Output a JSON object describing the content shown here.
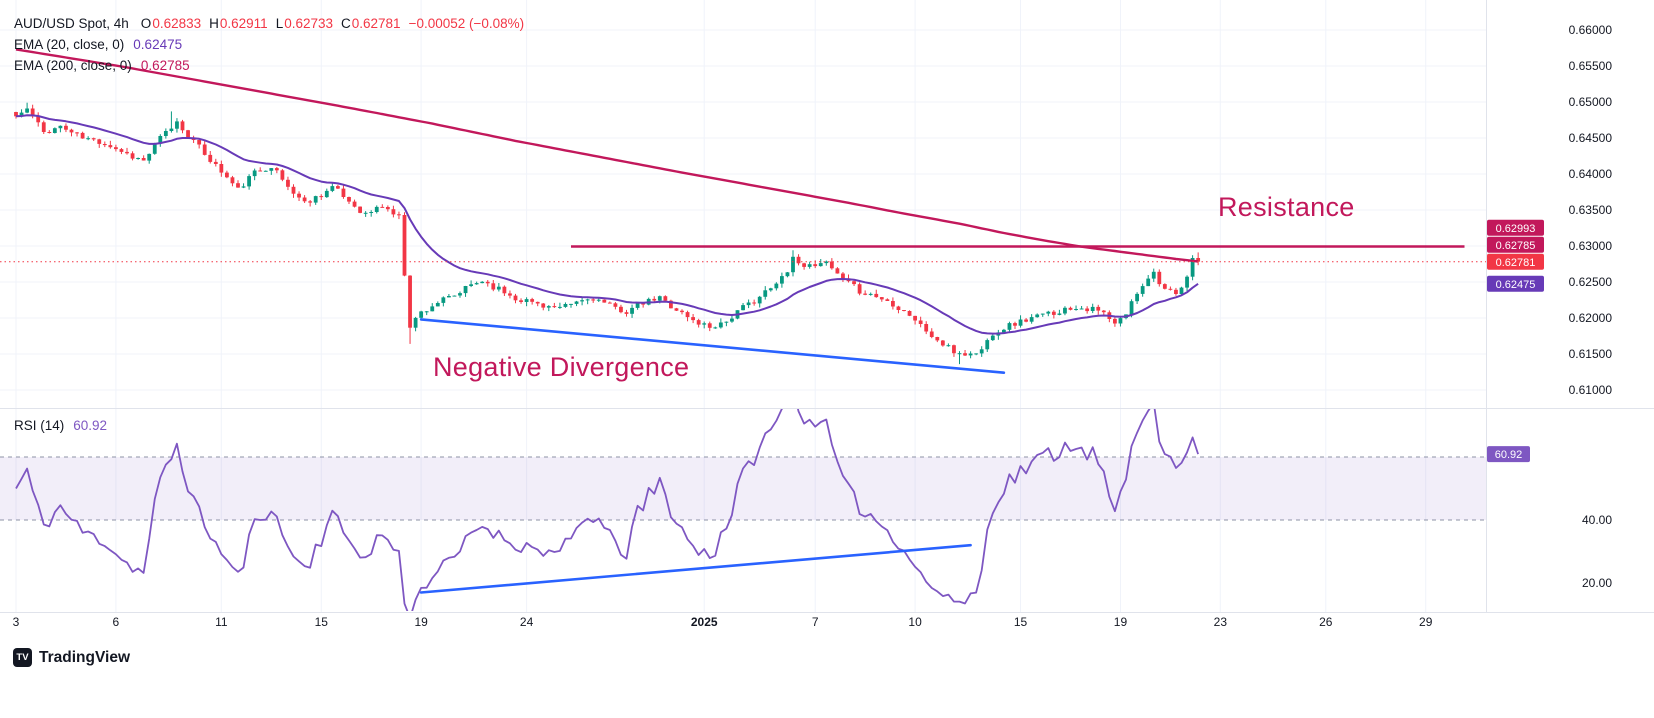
{
  "header": {
    "symbol": "AUD/USD Spot, 4h",
    "ohlc": [
      {
        "k": "O",
        "v": "0.62833"
      },
      {
        "k": "H",
        "v": "0.62911"
      },
      {
        "k": "L",
        "v": "0.62733"
      },
      {
        "k": "C",
        "v": "0.62781"
      }
    ],
    "change": "−0.00052 (−0.08%)",
    "value_color": "#f23645"
  },
  "indicators": [
    {
      "label": "EMA (20, close, 0)",
      "value": "0.62475",
      "color": "#673ab7"
    },
    {
      "label": "EMA (200, close, 0)",
      "value": "0.62785",
      "color": "#c2185b"
    }
  ],
  "rsi_legend": {
    "label": "RSI (14)",
    "value": "60.92",
    "color": "#7e57c2"
  },
  "annotations": {
    "resistance": {
      "text": "Resistance",
      "color": "#c2185b"
    },
    "divergence": {
      "text": "Negative Divergence",
      "color": "#c2185b"
    }
  },
  "watermark": {
    "text": "TradingView",
    "logo": "TV"
  },
  "chart_data": {
    "type": "candlestick",
    "symbol": "AUD/USD Spot",
    "interval": "4h",
    "legend_note": "price pane with EMA20/EMA200 plus RSI(14) pane",
    "price_axis": {
      "tick_values": [
        0.66,
        0.655,
        0.65,
        0.645,
        0.64,
        0.635,
        0.63,
        0.625,
        0.62,
        0.615,
        0.61
      ],
      "tick_step": 0.005
    },
    "time_axis": {
      "labels": [
        [
          "3",
          0
        ],
        [
          "6",
          18
        ],
        [
          "11",
          37
        ],
        [
          "15",
          55
        ],
        [
          "19",
          73
        ],
        [
          "24",
          92
        ],
        [
          "2025",
          124
        ],
        [
          "7",
          144
        ],
        [
          "10",
          162
        ],
        [
          "15",
          181
        ],
        [
          "19",
          199
        ],
        [
          "23",
          217
        ],
        [
          "26",
          236
        ],
        [
          "29",
          254
        ]
      ]
    },
    "candles": {
      "count": 214,
      "seed": 11,
      "noise": 0.00045,
      "wick": 0.0006,
      "up_color": "#089981",
      "down_color": "#f23645",
      "waypoints": [
        [
          0,
          0.648
        ],
        [
          2,
          0.649
        ],
        [
          5,
          0.6458
        ],
        [
          8,
          0.6466
        ],
        [
          12,
          0.645
        ],
        [
          16,
          0.6443
        ],
        [
          20,
          0.6428
        ],
        [
          23,
          0.6418
        ],
        [
          26,
          0.645
        ],
        [
          29,
          0.6472
        ],
        [
          32,
          0.6445
        ],
        [
          35,
          0.642
        ],
        [
          38,
          0.6395
        ],
        [
          40,
          0.6378
        ],
        [
          43,
          0.6402
        ],
        [
          46,
          0.6412
        ],
        [
          49,
          0.6382
        ],
        [
          52,
          0.636
        ],
        [
          55,
          0.6372
        ],
        [
          57,
          0.6382
        ],
        [
          60,
          0.6362
        ],
        [
          63,
          0.6344
        ],
        [
          66,
          0.6356
        ],
        [
          69,
          0.634
        ],
        [
          70,
          0.6262
        ],
        [
          71,
          0.619
        ],
        [
          73,
          0.6208
        ],
        [
          76,
          0.6222
        ],
        [
          79,
          0.623
        ],
        [
          82,
          0.6246
        ],
        [
          84,
          0.6252
        ],
        [
          87,
          0.624
        ],
        [
          90,
          0.6228
        ],
        [
          94,
          0.622
        ],
        [
          98,
          0.6212
        ],
        [
          101,
          0.6222
        ],
        [
          104,
          0.6228
        ],
        [
          107,
          0.6216
        ],
        [
          110,
          0.6209
        ],
        [
          113,
          0.622
        ],
        [
          116,
          0.6228
        ],
        [
          119,
          0.6212
        ],
        [
          122,
          0.6196
        ],
        [
          125,
          0.6188
        ],
        [
          128,
          0.6196
        ],
        [
          131,
          0.6214
        ],
        [
          134,
          0.623
        ],
        [
          137,
          0.6246
        ],
        [
          139,
          0.6268
        ],
        [
          140,
          0.6285
        ],
        [
          141,
          0.6276
        ],
        [
          143,
          0.6272
        ],
        [
          145,
          0.628
        ],
        [
          147,
          0.6268
        ],
        [
          149,
          0.6252
        ],
        [
          152,
          0.6238
        ],
        [
          155,
          0.623
        ],
        [
          158,
          0.622
        ],
        [
          161,
          0.6205
        ],
        [
          164,
          0.6182
        ],
        [
          166,
          0.6168
        ],
        [
          169,
          0.6153
        ],
        [
          172,
          0.6149
        ],
        [
          174,
          0.6156
        ],
        [
          176,
          0.618
        ],
        [
          179,
          0.619
        ],
        [
          183,
          0.62
        ],
        [
          187,
          0.6208
        ],
        [
          191,
          0.6216
        ],
        [
          194,
          0.6212
        ],
        [
          196,
          0.6206
        ],
        [
          198,
          0.619
        ],
        [
          200,
          0.6206
        ],
        [
          202,
          0.6236
        ],
        [
          204,
          0.6258
        ],
        [
          205,
          0.6263
        ],
        [
          207,
          0.624
        ],
        [
          209,
          0.623
        ],
        [
          211,
          0.6254
        ],
        [
          212,
          0.62833
        ],
        [
          213,
          0.62781
        ]
      ],
      "spikes": [
        [
          2,
          "h",
          0.6499
        ],
        [
          28,
          "h",
          0.6487
        ],
        [
          71,
          "l",
          0.6164
        ],
        [
          140,
          "h",
          0.6294
        ],
        [
          170,
          "l",
          0.6136
        ]
      ]
    },
    "last_candle": {
      "o": 0.62833,
      "h": 0.62911,
      "l": 0.62733,
      "c": 0.62781
    },
    "ema20": {
      "period": 20,
      "color": "#673ab7",
      "last": 0.62475
    },
    "ema200": {
      "color": "#c2185b",
      "last": 0.62785,
      "points": [
        [
          0,
          0.6573
        ],
        [
          20,
          0.6548
        ],
        [
          40,
          0.652
        ],
        [
          60,
          0.6492
        ],
        [
          75,
          0.647
        ],
        [
          90,
          0.6446
        ],
        [
          105,
          0.6424
        ],
        [
          120,
          0.6402
        ],
        [
          135,
          0.6381
        ],
        [
          150,
          0.636
        ],
        [
          160,
          0.6345
        ],
        [
          170,
          0.6331
        ],
        [
          178,
          0.6318
        ],
        [
          185,
          0.6308
        ],
        [
          192,
          0.6299
        ],
        [
          198,
          0.6293
        ],
        [
          204,
          0.6287
        ],
        [
          209,
          0.6282
        ],
        [
          213,
          0.62785
        ]
      ]
    },
    "resistance": {
      "value": 0.62993,
      "from": 100,
      "to": 261,
      "color": "#c2185b"
    },
    "last_price_line": {
      "value": 0.62781,
      "color": "#f23645"
    },
    "trendlines": {
      "color": "#2962ff",
      "price": [
        [
          73,
          0.6198
        ],
        [
          178,
          0.6124
        ]
      ],
      "rsi": [
        [
          73,
          17
        ],
        [
          172,
          32
        ]
      ]
    },
    "rsi": {
      "period": 14,
      "color": "#7e57c2",
      "last": 60.92,
      "bands": [
        60,
        40
      ],
      "band_fill": "rgba(126,87,194,0.1)",
      "band_line_color": "#8d93a6",
      "ticks": [
        [
          40,
          "40.00"
        ],
        [
          20,
          "20.00"
        ]
      ]
    },
    "badges": [
      {
        "label": "0.62993",
        "value": 0.62993,
        "color": "#c2185b"
      },
      {
        "label": "0.62785",
        "value": 0.62785,
        "color": "#c2185b"
      },
      {
        "label": "0.62781",
        "value": 0.62781,
        "color": "#f23645",
        "anchor": true
      },
      {
        "label": "0.62475",
        "value": 0.62475,
        "color": "#673ab7"
      },
      {
        "label": "60.92",
        "value": 60.92,
        "color": "#7e57c2",
        "panel": "rsi"
      }
    ]
  }
}
